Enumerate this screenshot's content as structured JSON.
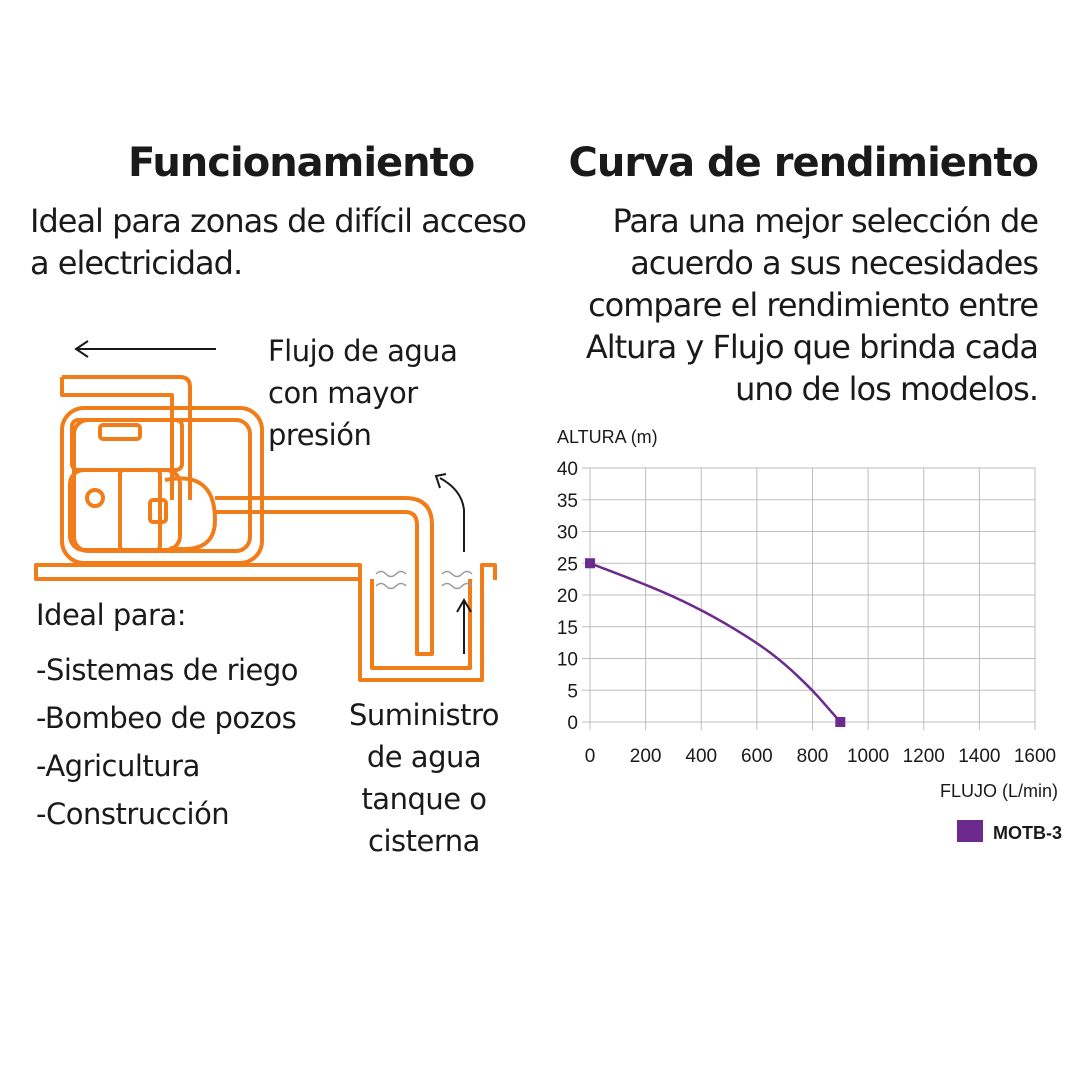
{
  "left": {
    "title": "Funcionamiento",
    "intro": [
      "Ideal para zonas de difícil acceso",
      "a electricidad."
    ],
    "flow_label": [
      "Flujo de agua",
      "con mayor",
      "presión"
    ],
    "ideal_heading": "Ideal para:",
    "uses": [
      "-Sistemas de riego",
      "-Bombeo de pozos",
      "-Agricultura",
      "-Construcción"
    ],
    "supply_label": [
      "Suministro",
      "de agua",
      "tanque  o",
      "cisterna"
    ]
  },
  "right": {
    "title": "Curva de rendimiento",
    "intro": [
      "Para una mejor selección de",
      "acuerdo a sus necesidades",
      "compare el rendimiento entre",
      "Altura y Flujo que brinda cada",
      "uno de los modelos."
    ]
  },
  "colors": {
    "pump_orange": "#f07d1a",
    "curve_purple": "#6b2a8c",
    "grid": "#bdbdbd",
    "text": "#1a1a1a"
  },
  "chart_data": {
    "type": "line",
    "ylabel": "ALTURA (m)",
    "xlabel": "FLUJO (L/min)",
    "xlim": [
      0,
      1600
    ],
    "ylim": [
      0,
      40
    ],
    "x_ticks": [
      0,
      200,
      400,
      600,
      800,
      1000,
      1200,
      1400,
      1600
    ],
    "y_ticks": [
      0,
      5,
      10,
      15,
      20,
      25,
      30,
      35,
      40
    ],
    "grid": true,
    "legend_position": "bottom-right",
    "series": [
      {
        "name": "MOTB-3",
        "color": "#6b2a8c",
        "x": [
          0,
          150,
          300,
          450,
          600,
          700,
          800,
          850,
          900
        ],
        "y": [
          25,
          22.5,
          19.8,
          16.5,
          12.5,
          9.2,
          5,
          2.5,
          0
        ],
        "markers_at_ends": true
      }
    ]
  }
}
